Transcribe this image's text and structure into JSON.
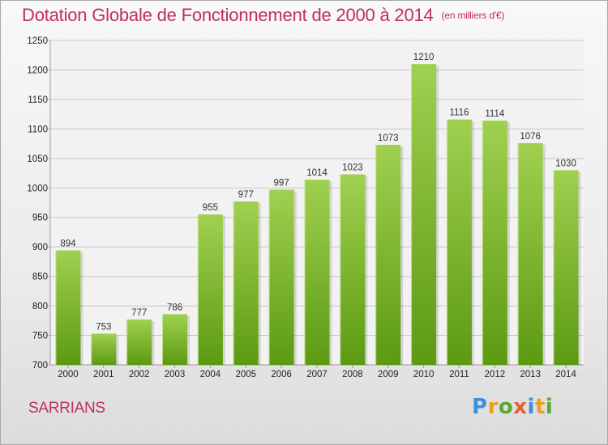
{
  "header": {
    "title": "Dotation Globale de Fonctionnement de 2000 à 2014",
    "unit": "(en milliers d'€)"
  },
  "footer": {
    "commune": "SARRIANS",
    "brand": [
      "P",
      "r",
      "o",
      "x",
      "i",
      "t",
      "i"
    ]
  },
  "colors": {
    "title": "#c0305a",
    "bar_top": "#a0d050",
    "bar_bottom": "#5c9a12",
    "grid": "#c8c8c8"
  },
  "chart_data": {
    "type": "bar",
    "title": "Dotation Globale de Fonctionnement de 2000 à 2014",
    "subtitle": "(en milliers d'€)",
    "xlabel": "",
    "ylabel": "",
    "categories": [
      "2000",
      "2001",
      "2002",
      "2003",
      "2004",
      "2005",
      "2006",
      "2007",
      "2008",
      "2009",
      "2010",
      "2011",
      "2012",
      "2013",
      "2014"
    ],
    "values": [
      894,
      753,
      777,
      786,
      955,
      977,
      997,
      1014,
      1023,
      1073,
      1210,
      1116,
      1114,
      1076,
      1030
    ],
    "ylim": [
      700,
      1250
    ],
    "yticks": [
      700,
      750,
      800,
      850,
      900,
      950,
      1000,
      1050,
      1100,
      1150,
      1200,
      1250
    ],
    "grid": true,
    "legend": "none"
  }
}
